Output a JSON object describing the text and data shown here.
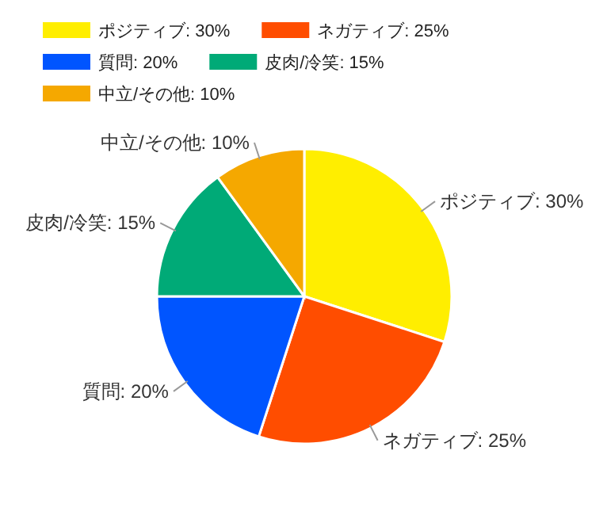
{
  "chart_data": {
    "type": "pie",
    "categories": [
      "ポジティブ: 30%",
      "ネガティブ: 25%",
      "質問: 20%",
      "皮肉/冷笑: 15%",
      "中立/その他: 10%"
    ],
    "values": [
      30,
      25,
      20,
      15,
      10
    ],
    "colors": [
      "#ffee00",
      "#ff4d00",
      "#0055ff",
      "#00aa77",
      "#f5a800"
    ],
    "legend": "top"
  }
}
